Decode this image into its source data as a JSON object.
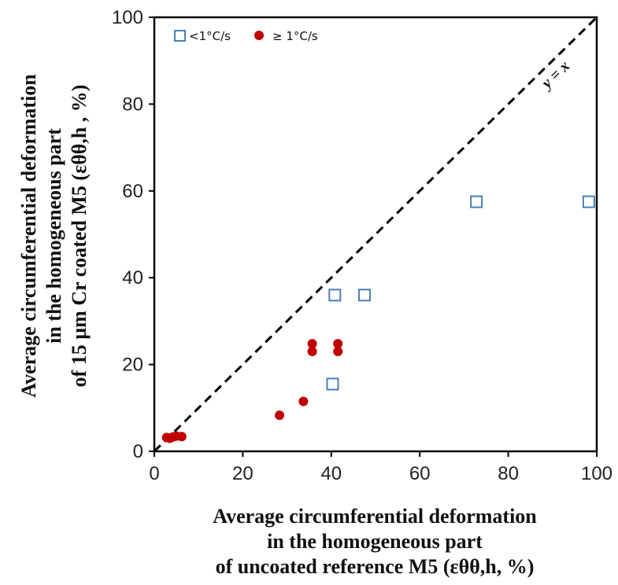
{
  "chart_data": {
    "type": "scatter",
    "xlabel_lines": [
      "Average circumferential deformation",
      "in the homogeneous part",
      "of uncoated reference M5 (εθθ,h, %)"
    ],
    "ylabel_lines": [
      "Average circumferential deformation",
      "in the homogeneous part",
      "of 15 µm Cr coated M5 (εθθ,h , %)"
    ],
    "xlim": [
      0,
      100
    ],
    "ylim": [
      0,
      100
    ],
    "xticks": [
      0,
      20,
      40,
      60,
      80,
      100
    ],
    "yticks": [
      0,
      20,
      40,
      60,
      80,
      100
    ],
    "grid": false,
    "legend_position": "top-left",
    "reference_line": {
      "label": "y = x",
      "style": "dashed"
    },
    "series": [
      {
        "name": "<1°C/s",
        "marker": "open-square",
        "color": "#4a7ebb",
        "points": [
          [
            40.3,
            15.5
          ],
          [
            40.8,
            36.0
          ],
          [
            47.5,
            36.0
          ],
          [
            72.8,
            57.5
          ],
          [
            98.2,
            57.5
          ]
        ]
      },
      {
        "name": "≥ 1°C/s",
        "marker": "filled-circle",
        "color": "#c00000",
        "points": [
          [
            2.8,
            3.2
          ],
          [
            3.5,
            3.0
          ],
          [
            4.2,
            3.3
          ],
          [
            5.0,
            3.5
          ],
          [
            6.2,
            3.4
          ],
          [
            28.3,
            8.3
          ],
          [
            33.7,
            11.5
          ],
          [
            35.7,
            24.8
          ],
          [
            35.7,
            23.0
          ],
          [
            41.5,
            24.8
          ],
          [
            41.5,
            23.0
          ]
        ]
      }
    ]
  }
}
